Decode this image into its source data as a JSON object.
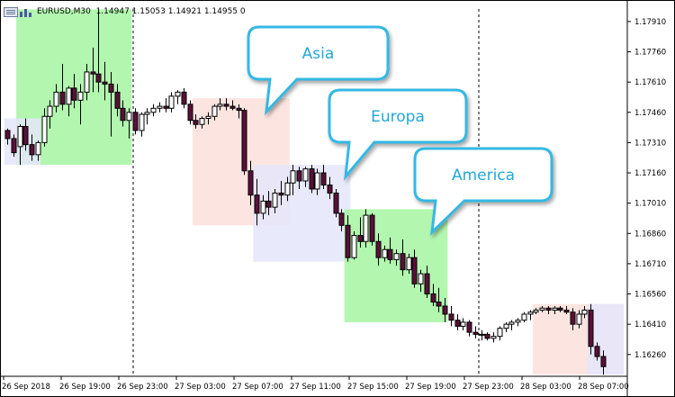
{
  "header": {
    "symbol": "EURUSD,M30",
    "ohlc": "1.14947 1.15053 1.14921 1.14955 0"
  },
  "chart_data": {
    "type": "candlestick",
    "price_axis": {
      "min": 1.16152,
      "max": 1.17972,
      "ticks": [
        "1.17910",
        "1.17760",
        "1.17610",
        "1.17460",
        "1.17310",
        "1.17160",
        "1.17010",
        "1.16860",
        "1.16710",
        "1.16560",
        "1.16410",
        "1.16260"
      ]
    },
    "time_labels": [
      "26 Sep 2018",
      "26 Sep 19:00",
      "26 Sep 23:00",
      "27 Sep 03:00",
      "27 Sep 07:00",
      "27 Sep 11:00",
      "27 Sep 15:00",
      "27 Sep 19:00",
      "27 Sep 23:00",
      "28 Sep 03:00",
      "28 Sep 07:00"
    ],
    "sessions": [
      {
        "name": "Asia",
        "start": 31,
        "end": 46,
        "color": "#fce0dc"
      },
      {
        "name": "Europa",
        "start": 41,
        "end": 56,
        "color": "#e4e6fa"
      },
      {
        "name": "America",
        "start": 56,
        "end": 72,
        "color": "#a5f5a1"
      },
      {
        "name": "Asia",
        "start": 87,
        "end": 101,
        "color": "#fce0dc"
      },
      {
        "name": "Europa",
        "start": 96,
        "end": 101,
        "color": "#e4e6fa"
      },
      {
        "name": "America",
        "start": 2,
        "end": 20,
        "color": "#a5f5a1"
      },
      {
        "name": "Europa",
        "start": 0,
        "end": 5,
        "color": "#e4e6fa"
      }
    ],
    "callouts": [
      "Asia",
      "Europa",
      "America"
    ],
    "period_separators": [
      "26 Sep 2018 21:30",
      "27 Sep 21:30"
    ],
    "candles": [
      [
        1.1737,
        1.1738,
        1.173,
        1.1733
      ],
      [
        1.1733,
        1.1735,
        1.1724,
        1.1726
      ],
      [
        1.1729,
        1.174,
        1.172,
        1.1739
      ],
      [
        1.1739,
        1.1743,
        1.1727,
        1.173
      ],
      [
        1.173,
        1.1735,
        1.1722,
        1.1725
      ],
      [
        1.1725,
        1.1732,
        1.1722,
        1.1731
      ],
      [
        1.1731,
        1.1748,
        1.1729,
        1.1744
      ],
      [
        1.1744,
        1.1752,
        1.1738,
        1.1749
      ],
      [
        1.1749,
        1.176,
        1.1746,
        1.1756
      ],
      [
        1.1756,
        1.177,
        1.1747,
        1.175
      ],
      [
        1.175,
        1.1759,
        1.1744,
        1.1758
      ],
      [
        1.1758,
        1.1765,
        1.1748,
        1.1752
      ],
      [
        1.1752,
        1.176,
        1.174,
        1.1756
      ],
      [
        1.1756,
        1.177,
        1.1752,
        1.1766
      ],
      [
        1.1766,
        1.1778,
        1.1756,
        1.1765
      ],
      [
        1.1765,
        1.1797,
        1.1756,
        1.1761
      ],
      [
        1.1761,
        1.1771,
        1.1752,
        1.176
      ],
      [
        1.176,
        1.1766,
        1.1734,
        1.1756
      ],
      [
        1.1756,
        1.176,
        1.1744,
        1.1748
      ],
      [
        1.1748,
        1.1752,
        1.1739,
        1.1742
      ],
      [
        1.1742,
        1.1748,
        1.1733,
        1.1746
      ],
      [
        1.1746,
        1.1748,
        1.1735,
        1.1737
      ],
      [
        1.1737,
        1.1746,
        1.1734,
        1.1745
      ],
      [
        1.1745,
        1.1748,
        1.174,
        1.1746
      ],
      [
        1.1746,
        1.175,
        1.1744,
        1.1748
      ],
      [
        1.1748,
        1.1751,
        1.1746,
        1.1749
      ],
      [
        1.1749,
        1.1753,
        1.1746,
        1.1748
      ],
      [
        1.1748,
        1.1756,
        1.1746,
        1.1754
      ],
      [
        1.1754,
        1.1757,
        1.175,
        1.1756
      ],
      [
        1.1756,
        1.1758,
        1.1748,
        1.175
      ],
      [
        1.175,
        1.1752,
        1.174,
        1.1742
      ],
      [
        1.1742,
        1.1745,
        1.1738,
        1.174
      ],
      [
        1.174,
        1.1744,
        1.1738,
        1.1743
      ],
      [
        1.1743,
        1.1746,
        1.174,
        1.1744
      ],
      [
        1.1744,
        1.175,
        1.1742,
        1.1749
      ],
      [
        1.1749,
        1.1753,
        1.1747,
        1.175
      ],
      [
        1.175,
        1.1753,
        1.1747,
        1.1749
      ],
      [
        1.1749,
        1.1752,
        1.1747,
        1.1748
      ],
      [
        1.1748,
        1.175,
        1.1743,
        1.1747
      ],
      [
        1.1747,
        1.1748,
        1.1715,
        1.1717
      ],
      [
        1.1717,
        1.1722,
        1.17,
        1.1705
      ],
      [
        1.1705,
        1.1713,
        1.169,
        1.1696
      ],
      [
        1.1696,
        1.1705,
        1.1693,
        1.1702
      ],
      [
        1.1702,
        1.1707,
        1.1695,
        1.1699
      ],
      [
        1.1699,
        1.1708,
        1.1696,
        1.1706
      ],
      [
        1.1706,
        1.1712,
        1.17,
        1.1705
      ],
      [
        1.1705,
        1.1714,
        1.1702,
        1.1711
      ],
      [
        1.1711,
        1.172,
        1.1705,
        1.1717
      ],
      [
        1.1717,
        1.1719,
        1.1708,
        1.1712
      ],
      [
        1.1712,
        1.1719,
        1.1709,
        1.1718
      ],
      [
        1.1718,
        1.172,
        1.1706,
        1.1708
      ],
      [
        1.1708,
        1.1718,
        1.1705,
        1.1716
      ],
      [
        1.1716,
        1.172,
        1.1708,
        1.171
      ],
      [
        1.171,
        1.1714,
        1.1703,
        1.1706
      ],
      [
        1.1706,
        1.1708,
        1.1694,
        1.1696
      ],
      [
        1.1696,
        1.1698,
        1.1687,
        1.169
      ],
      [
        1.169,
        1.1695,
        1.1672,
        1.1674
      ],
      [
        1.1674,
        1.1687,
        1.1673,
        1.1685
      ],
      [
        1.1685,
        1.1694,
        1.1679,
        1.1682
      ],
      [
        1.1682,
        1.1698,
        1.1679,
        1.1695
      ],
      [
        1.1695,
        1.1696,
        1.168,
        1.1682
      ],
      [
        1.1682,
        1.1686,
        1.167,
        1.1674
      ],
      [
        1.1674,
        1.168,
        1.1672,
        1.1678
      ],
      [
        1.1678,
        1.1684,
        1.1671,
        1.1673
      ],
      [
        1.1673,
        1.1678,
        1.167,
        1.1676
      ],
      [
        1.1676,
        1.1683,
        1.1665,
        1.1668
      ],
      [
        1.1668,
        1.1676,
        1.1666,
        1.1674
      ],
      [
        1.1674,
        1.1678,
        1.1659,
        1.1661
      ],
      [
        1.1661,
        1.1668,
        1.1657,
        1.1666
      ],
      [
        1.1666,
        1.167,
        1.1654,
        1.1656
      ],
      [
        1.1656,
        1.1661,
        1.165,
        1.1652
      ],
      [
        1.1652,
        1.1659,
        1.1647,
        1.165
      ],
      [
        1.165,
        1.1654,
        1.1642,
        1.1646
      ],
      [
        1.1646,
        1.165,
        1.164,
        1.1643
      ],
      [
        1.1643,
        1.1646,
        1.1638,
        1.164
      ],
      [
        1.164,
        1.1644,
        1.1638,
        1.1642
      ],
      [
        1.1642,
        1.1643,
        1.1635,
        1.1637
      ],
      [
        1.1637,
        1.164,
        1.1634,
        1.1636
      ],
      [
        1.1636,
        1.1638,
        1.1633,
        1.1636
      ],
      [
        1.1636,
        1.1637,
        1.1633,
        1.1634
      ],
      [
        1.1634,
        1.1637,
        1.1632,
        1.1635
      ],
      [
        1.1635,
        1.164,
        1.1633,
        1.1639
      ],
      [
        1.1639,
        1.1642,
        1.1637,
        1.1641
      ],
      [
        1.1641,
        1.1643,
        1.1638,
        1.1642
      ],
      [
        1.1642,
        1.1644,
        1.164,
        1.1643
      ],
      [
        1.1643,
        1.1647,
        1.1642,
        1.1646
      ],
      [
        1.1646,
        1.1648,
        1.1643,
        1.1647
      ],
      [
        1.1647,
        1.1649,
        1.1646,
        1.1648
      ],
      [
        1.1648,
        1.165,
        1.1647,
        1.1649
      ],
      [
        1.1649,
        1.165,
        1.1646,
        1.1648
      ],
      [
        1.1648,
        1.165,
        1.1646,
        1.1649
      ],
      [
        1.1649,
        1.165,
        1.1647,
        1.1648
      ],
      [
        1.1648,
        1.165,
        1.1646,
        1.1647
      ],
      [
        1.1647,
        1.1649,
        1.1638,
        1.1641
      ],
      [
        1.1641,
        1.1648,
        1.1639,
        1.1646
      ],
      [
        1.1646,
        1.165,
        1.1644,
        1.1648
      ],
      [
        1.1648,
        1.1651,
        1.1626,
        1.163
      ],
      [
        1.163,
        1.1632,
        1.1623,
        1.1625
      ],
      [
        1.1625,
        1.1628,
        1.1616,
        1.162
      ]
    ]
  }
}
